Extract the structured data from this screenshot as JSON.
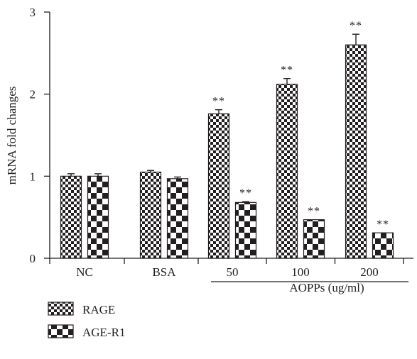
{
  "chart_data": {
    "type": "bar",
    "ylabel": "mRNA fold changes",
    "group_label": "AOPPs (ug/ml)",
    "ylim": [
      0,
      3
    ],
    "yticks": [
      0,
      1,
      2,
      3
    ],
    "categories": [
      "NC",
      "BSA",
      "50",
      "100",
      "200"
    ],
    "grouped_categories": [
      "50",
      "100",
      "200"
    ],
    "series": [
      {
        "name": "RAGE",
        "values": [
          1.0,
          1.05,
          1.76,
          2.12,
          2.6
        ],
        "errors": [
          0.03,
          0.02,
          0.05,
          0.07,
          0.13
        ],
        "significance": [
          "",
          "",
          "**",
          "**",
          "**"
        ],
        "pattern": "fine-checker"
      },
      {
        "name": "AGE-R1",
        "values": [
          1.0,
          0.97,
          0.68,
          0.47,
          0.31
        ],
        "errors": [
          0.03,
          0.02,
          0.01,
          0.0,
          0.0
        ],
        "significance": [
          "",
          "",
          "**",
          "**",
          "**"
        ],
        "pattern": "coarse-checker"
      }
    ],
    "legend_position": "bottom-left",
    "grid": false,
    "colors": {
      "ink": "#231f20",
      "fill": "#ffffff"
    }
  }
}
